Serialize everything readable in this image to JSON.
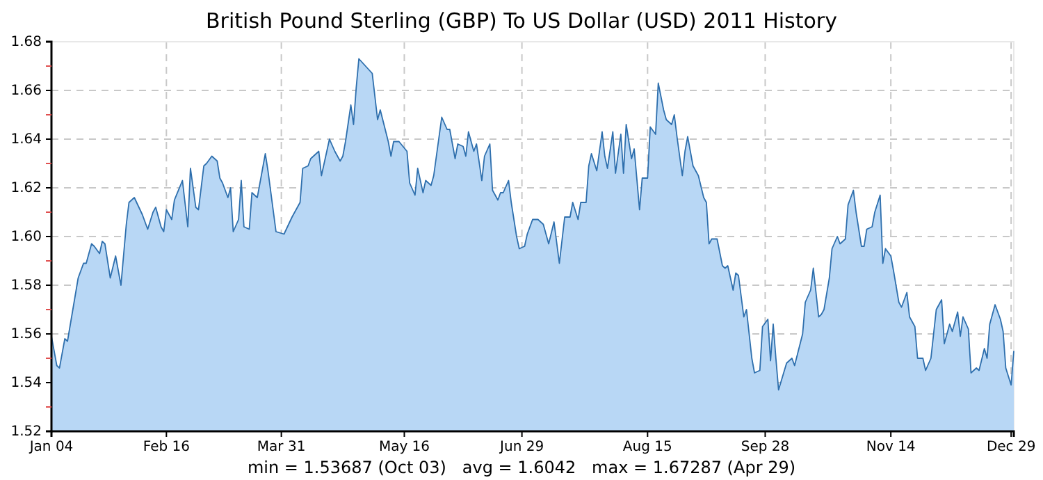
{
  "chart_data": {
    "type": "area",
    "title": "British Pound Sterling (GBP) To US Dollar (USD) 2011 History",
    "annotations": [
      "min = 1.53687 (Oct 03)   avg = 1.6042   max = 1.67287 (Apr 29)"
    ],
    "x": [
      "2011-01-04",
      "2011-01-06",
      "2011-01-07",
      "2011-01-09",
      "2011-01-10",
      "2011-01-12",
      "2011-01-14",
      "2011-01-16",
      "2011-01-17",
      "2011-01-19",
      "2011-01-20",
      "2011-01-22",
      "2011-01-23",
      "2011-01-24",
      "2011-01-26",
      "2011-01-28",
      "2011-01-30",
      "2011-02-01",
      "2011-02-02",
      "2011-02-04",
      "2011-02-07",
      "2011-02-09",
      "2011-02-11",
      "2011-02-12",
      "2011-02-14",
      "2011-02-15",
      "2011-02-16",
      "2011-02-18",
      "2011-02-19",
      "2011-02-22",
      "2011-02-24",
      "2011-02-25",
      "2011-02-27",
      "2011-02-28",
      "2011-03-02",
      "2011-03-03",
      "2011-03-05",
      "2011-03-07",
      "2011-03-08",
      "2011-03-09",
      "2011-03-11",
      "2011-03-12",
      "2011-03-13",
      "2011-03-15",
      "2011-03-16",
      "2011-03-17",
      "2011-03-19",
      "2011-03-20",
      "2011-03-22",
      "2011-03-25",
      "2011-03-26",
      "2011-03-29",
      "2011-04-01",
      "2011-04-04",
      "2011-04-07",
      "2011-04-08",
      "2011-04-10",
      "2011-04-11",
      "2011-04-14",
      "2011-04-15",
      "2011-04-18",
      "2011-04-20",
      "2011-04-22",
      "2011-04-23",
      "2011-04-24",
      "2011-04-26",
      "2011-04-27",
      "2011-04-28",
      "2011-04-29",
      "2011-05-04",
      "2011-05-06",
      "2011-05-07",
      "2011-05-10",
      "2011-05-11",
      "2011-05-12",
      "2011-05-14",
      "2011-05-17",
      "2011-05-18",
      "2011-05-20",
      "2011-05-21",
      "2011-05-23",
      "2011-05-24",
      "2011-05-26",
      "2011-05-27",
      "2011-05-30",
      "2011-06-01",
      "2011-06-02",
      "2011-06-04",
      "2011-06-05",
      "2011-06-07",
      "2011-06-08",
      "2011-06-09",
      "2011-06-11",
      "2011-06-12",
      "2011-06-14",
      "2011-06-15",
      "2011-06-17",
      "2011-06-18",
      "2011-06-20",
      "2011-06-21",
      "2011-06-22",
      "2011-06-24",
      "2011-06-25",
      "2011-06-27",
      "2011-06-28",
      "2011-06-30",
      "2011-07-01",
      "2011-07-03",
      "2011-07-05",
      "2011-07-07",
      "2011-07-09",
      "2011-07-11",
      "2011-07-13",
      "2011-07-15",
      "2011-07-17",
      "2011-07-18",
      "2011-07-20",
      "2011-07-21",
      "2011-07-23",
      "2011-07-24",
      "2011-07-25",
      "2011-07-27",
      "2011-07-29",
      "2011-07-30",
      "2011-07-31",
      "2011-08-02",
      "2011-08-03",
      "2011-08-05",
      "2011-08-06",
      "2011-08-07",
      "2011-08-09",
      "2011-08-10",
      "2011-08-12",
      "2011-08-13",
      "2011-08-15",
      "2011-08-16",
      "2011-08-18",
      "2011-08-19",
      "2011-08-21",
      "2011-08-22",
      "2011-08-24",
      "2011-08-25",
      "2011-08-26",
      "2011-08-28",
      "2011-08-29",
      "2011-08-30",
      "2011-09-01",
      "2011-09-03",
      "2011-09-05",
      "2011-09-06",
      "2011-09-07",
      "2011-09-08",
      "2011-09-10",
      "2011-09-12",
      "2011-09-13",
      "2011-09-14",
      "2011-09-16",
      "2011-09-17",
      "2011-09-18",
      "2011-09-20",
      "2011-09-21",
      "2011-09-23",
      "2011-09-24",
      "2011-09-26",
      "2011-09-27",
      "2011-09-29",
      "2011-09-30",
      "2011-10-01",
      "2011-10-02",
      "2011-10-03",
      "2011-10-06",
      "2011-10-08",
      "2011-10-09",
      "2011-10-12",
      "2011-10-13",
      "2011-10-15",
      "2011-10-16",
      "2011-10-18",
      "2011-10-19",
      "2011-10-20",
      "2011-10-22",
      "2011-10-23",
      "2011-10-25",
      "2011-10-26",
      "2011-10-28",
      "2011-10-29",
      "2011-10-31",
      "2011-11-01",
      "2011-11-03",
      "2011-11-04",
      "2011-11-05",
      "2011-11-07",
      "2011-11-08",
      "2011-11-10",
      "2011-11-11",
      "2011-11-12",
      "2011-11-14",
      "2011-11-15",
      "2011-11-17",
      "2011-11-18",
      "2011-11-20",
      "2011-11-21",
      "2011-11-23",
      "2011-11-24",
      "2011-11-26",
      "2011-11-27",
      "2011-11-29",
      "2011-11-30",
      "2011-12-01",
      "2011-12-03",
      "2011-12-04",
      "2011-12-06",
      "2011-12-07",
      "2011-12-09",
      "2011-12-10",
      "2011-12-11",
      "2011-12-13",
      "2011-12-14",
      "2011-12-16",
      "2011-12-17",
      "2011-12-19",
      "2011-12-20",
      "2011-12-21",
      "2011-12-23",
      "2011-12-25",
      "2011-12-26",
      "2011-12-27",
      "2011-12-29",
      "2011-12-30"
    ],
    "series": [
      {
        "color": "#2e6fad",
        "values": [
          1.559,
          1.547,
          1.546,
          1.558,
          1.557,
          1.57,
          1.583,
          1.589,
          1.589,
          1.597,
          1.596,
          1.593,
          1.598,
          1.597,
          1.583,
          1.592,
          1.58,
          1.605,
          1.614,
          1.616,
          1.609,
          1.603,
          1.61,
          1.612,
          1.604,
          1.602,
          1.611,
          1.607,
          1.615,
          1.623,
          1.604,
          1.628,
          1.612,
          1.611,
          1.629,
          1.63,
          1.633,
          1.631,
          1.624,
          1.622,
          1.616,
          1.62,
          1.602,
          1.607,
          1.623,
          1.604,
          1.603,
          1.618,
          1.616,
          1.634,
          1.627,
          1.602,
          1.601,
          1.608,
          1.614,
          1.628,
          1.629,
          1.632,
          1.635,
          1.625,
          1.64,
          1.635,
          1.631,
          1.633,
          1.639,
          1.654,
          1.646,
          1.661,
          1.673,
          1.667,
          1.648,
          1.652,
          1.639,
          1.633,
          1.639,
          1.639,
          1.635,
          1.622,
          1.617,
          1.628,
          1.618,
          1.623,
          1.621,
          1.625,
          1.649,
          1.644,
          1.644,
          1.632,
          1.638,
          1.637,
          1.633,
          1.643,
          1.635,
          1.638,
          1.623,
          1.633,
          1.638,
          1.619,
          1.615,
          1.618,
          1.618,
          1.623,
          1.614,
          1.6,
          1.595,
          1.596,
          1.601,
          1.607,
          1.607,
          1.605,
          1.597,
          1.606,
          1.589,
          1.608,
          1.608,
          1.614,
          1.607,
          1.614,
          1.614,
          1.629,
          1.634,
          1.627,
          1.643,
          1.633,
          1.628,
          1.643,
          1.626,
          1.642,
          1.626,
          1.646,
          1.632,
          1.636,
          1.611,
          1.624,
          1.624,
          1.645,
          1.642,
          1.663,
          1.652,
          1.648,
          1.646,
          1.65,
          1.641,
          1.625,
          1.635,
          1.641,
          1.629,
          1.625,
          1.616,
          1.614,
          1.597,
          1.599,
          1.599,
          1.588,
          1.587,
          1.588,
          1.578,
          1.585,
          1.584,
          1.567,
          1.57,
          1.55,
          1.544,
          1.545,
          1.563,
          1.566,
          1.549,
          1.564,
          1.55,
          1.537,
          1.548,
          1.55,
          1.547,
          1.56,
          1.573,
          1.578,
          1.587,
          1.567,
          1.568,
          1.57,
          1.583,
          1.595,
          1.6,
          1.597,
          1.599,
          1.613,
          1.619,
          1.61,
          1.596,
          1.596,
          1.603,
          1.604,
          1.61,
          1.617,
          1.589,
          1.595,
          1.592,
          1.586,
          1.573,
          1.571,
          1.577,
          1.567,
          1.563,
          1.55,
          1.55,
          1.545,
          1.55,
          1.56,
          1.57,
          1.574,
          1.556,
          1.564,
          1.561,
          1.569,
          1.559,
          1.567,
          1.562,
          1.544,
          1.546,
          1.545,
          1.554,
          1.55,
          1.564,
          1.572,
          1.566,
          1.561,
          1.546,
          1.539,
          1.553
        ]
      }
    ],
    "xlim": [
      "2011-01-04",
      "2011-12-30"
    ],
    "xticks": [
      {
        "value": "2011-01-04",
        "label": "Jan 04"
      },
      {
        "value": "2011-02-16",
        "label": "Feb 16"
      },
      {
        "value": "2011-03-31",
        "label": "Mar 31"
      },
      {
        "value": "2011-05-16",
        "label": "May 16"
      },
      {
        "value": "2011-06-29",
        "label": "Jun 29"
      },
      {
        "value": "2011-08-15",
        "label": "Aug 15"
      },
      {
        "value": "2011-09-28",
        "label": "Sep 28"
      },
      {
        "value": "2011-11-14",
        "label": "Nov 14"
      },
      {
        "value": "2011-12-29",
        "label": "Dec 29"
      }
    ],
    "ylim": [
      1.52,
      1.68
    ],
    "yticks": [
      1.52,
      {
        "value": 1.53,
        "label": null
      },
      1.54,
      {
        "value": 1.55,
        "label": null
      },
      1.56,
      {
        "value": 1.57,
        "label": null
      },
      1.58,
      {
        "value": 1.59,
        "label": null
      },
      {
        "value": 1.6,
        "label": "1.60"
      },
      {
        "value": 1.61,
        "label": null
      },
      1.62,
      {
        "value": 1.63,
        "label": null
      },
      1.64,
      {
        "value": 1.65,
        "label": null
      },
      1.66,
      {
        "value": 1.67,
        "label": null
      },
      1.68
    ],
    "grid": true,
    "marker": "none",
    "line_style": "solid"
  }
}
